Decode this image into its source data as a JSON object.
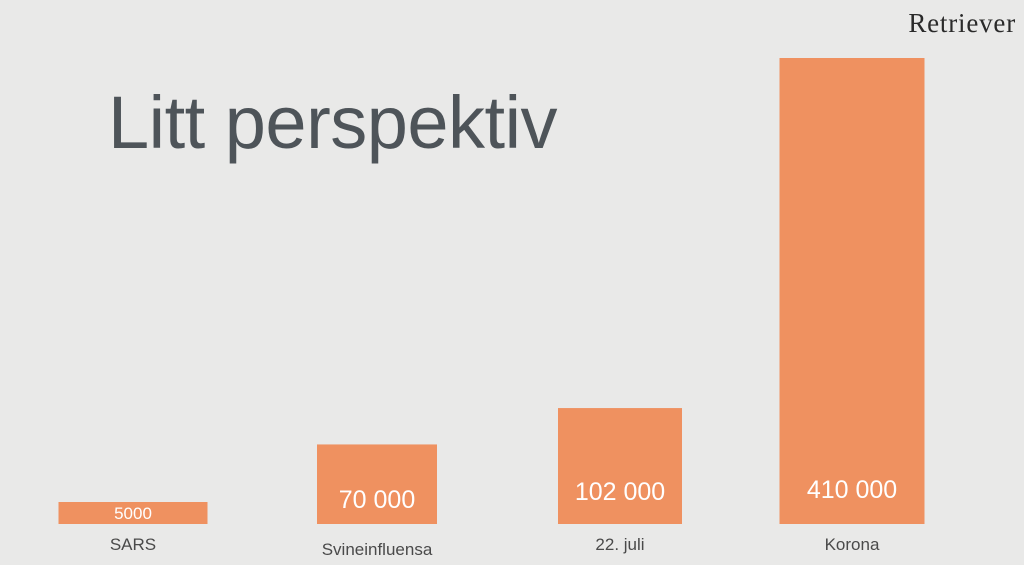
{
  "logo": "Retriever",
  "title": "Litt perspektiv",
  "chart_data": {
    "type": "bar",
    "title": "Litt perspektiv",
    "xlabel": "",
    "ylabel": "",
    "categories": [
      "SARS",
      "Svineinfluensa",
      "22. juli",
      "Korona"
    ],
    "values": [
      5000,
      70000,
      102000,
      410000
    ],
    "value_labels": [
      "5000",
      "70 000",
      "102 000",
      "410 000"
    ],
    "ylim": [
      0,
      410000
    ],
    "grid": false,
    "legend": "none",
    "colors": {
      "bar": "#ef9160",
      "bar_label": "#ffffff",
      "category_label": "#4a4a4a",
      "background": "#e9e9e8",
      "title": "#4e5459"
    }
  }
}
